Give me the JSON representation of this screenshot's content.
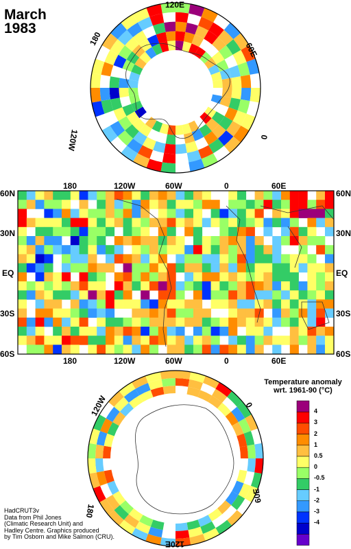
{
  "title": {
    "month": "March",
    "year": "1983"
  },
  "map_labels": {
    "north_top": "120E",
    "north_left": "180",
    "north_right": "60E",
    "north_left_low": "120W",
    "north_right_low": "0",
    "lon_top": [
      "180",
      "120W",
      "60W",
      "0",
      "60E"
    ],
    "lon_bottom": [
      "180",
      "120W",
      "60W",
      "0",
      "60E"
    ],
    "lat_left": [
      "60N",
      "30N",
      "EQ",
      "30S",
      "60S"
    ],
    "lat_right": [
      "60N",
      "30N",
      "EQ",
      "30S",
      "60S"
    ],
    "south_left": "120W",
    "south_right": "0",
    "south_left_low": "180",
    "south_right_low": "60E",
    "south_bottom": "120E"
  },
  "legend": {
    "title_line1": "Temperature anomaly",
    "title_line2": "wrt. 1961-90  (°C)",
    "labels": [
      "4",
      "3",
      "2",
      "1",
      "0.5",
      "0",
      "-0.5",
      "-1",
      "-2",
      "-3",
      "-4"
    ],
    "colors": [
      "#9b007a",
      "#ff0000",
      "#ff4d00",
      "#ff8c00",
      "#ffbf40",
      "#ffff66",
      "#99ff66",
      "#33cc66",
      "#66ccff",
      "#3399ff",
      "#0033ff",
      "#0000cc",
      "#6600cc"
    ]
  },
  "credit": [
    "HadCRUT3v",
    "Data from Phil Jones",
    "(Climatic Research Unit) and",
    "Hadley Centre.  Graphics produced",
    "by Tim Osborn and Mike Salmon (CRU)."
  ]
}
